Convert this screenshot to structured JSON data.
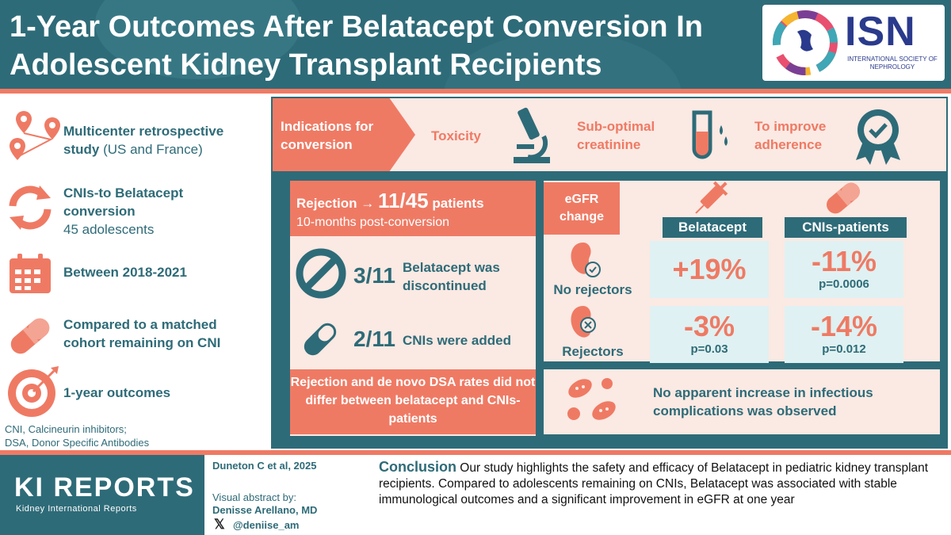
{
  "header": {
    "title": "1-Year Outcomes After Belatacept Conversion In Adolescent Kidney Transplant Recipients",
    "logo_abbrev": "ISN",
    "logo_sub": "INTERNATIONAL SOCIETY OF NEPHROLOGY"
  },
  "left": {
    "items": [
      {
        "icon": "location-pins-icon",
        "bold": "Multicenter retrospective study",
        "normal": " (US and France)"
      },
      {
        "icon": "refresh-arrows-icon",
        "bold": "CNIs-to Belatacept conversion",
        "normal": "45 adolescents"
      },
      {
        "icon": "calendar-icon",
        "bold": "Between 2018-2021",
        "normal": ""
      },
      {
        "icon": "pill-icon",
        "bold": "Compared to a matched cohort remaining on CNI",
        "normal": ""
      },
      {
        "icon": "target-icon",
        "bold": "1-year outcomes",
        "normal": ""
      }
    ],
    "footnote_1": "CNI, Calcineurin inhibitors;",
    "footnote_2": "DSA, Donor Specific Antibodies"
  },
  "indications": {
    "label": "Indications for conversion",
    "items": [
      {
        "label": "Toxicity",
        "icon": "microscope-icon"
      },
      {
        "label": "Sub-optimal creatinine",
        "icon": "test-tube-icon"
      },
      {
        "label": "To improve adherence",
        "icon": "award-badge-icon"
      }
    ]
  },
  "rejection": {
    "title_prefix": "Rejection →",
    "title_big": "11/45",
    "title_suffix": "patients",
    "subtitle": "10-months post-conversion",
    "rows": [
      {
        "count": "3/11",
        "text": "Belatacept was discontinued",
        "icon": "prohibited-icon"
      },
      {
        "count": "2/11",
        "text": "CNIs were added",
        "icon": "capsule-icon"
      }
    ],
    "note": "Rejection and de novo DSA rates did not differ between belatacept and CNIs-patients"
  },
  "egfr": {
    "label": "eGFR change",
    "col_belatacept": "Belatacept",
    "col_cnis": "CNIs-patients",
    "row_no_rejectors": "No rejectors",
    "row_rejectors": "Rejectors",
    "no_rej_bela_pct": "+19%",
    "no_rej_cni_pct": "-11%",
    "no_rej_cni_p": "p=0.0006",
    "rej_bela_pct": "-3%",
    "rej_bela_p": "p=0.03",
    "rej_cni_pct": "-14%",
    "rej_cni_p": "p=0.012"
  },
  "infection": {
    "text": "No apparent increase in infectious complications was observed"
  },
  "footer": {
    "journal": "KI REPORTS",
    "journal_sub": "Kidney International Reports",
    "citation": "Duneton C et al, 2025",
    "va_label": "Visual abstract by:",
    "va_name": "Denisse Arellano, MD",
    "x_handle": "@deniise_am",
    "conclusion_head": "Conclusion",
    "conclusion_text": " Our study highlights the safety and efficacy of Belatacept in pediatric kidney transplant recipients. Compared to adolescents remaining on CNIs, Belatacept was associated with stable immunological outcomes and a significant improvement in eGFR at one year"
  },
  "colors": {
    "teal": "#2e6b78",
    "coral": "#ef7a64",
    "peach": "#fbe9e3",
    "light_teal": "#dff1f2"
  }
}
